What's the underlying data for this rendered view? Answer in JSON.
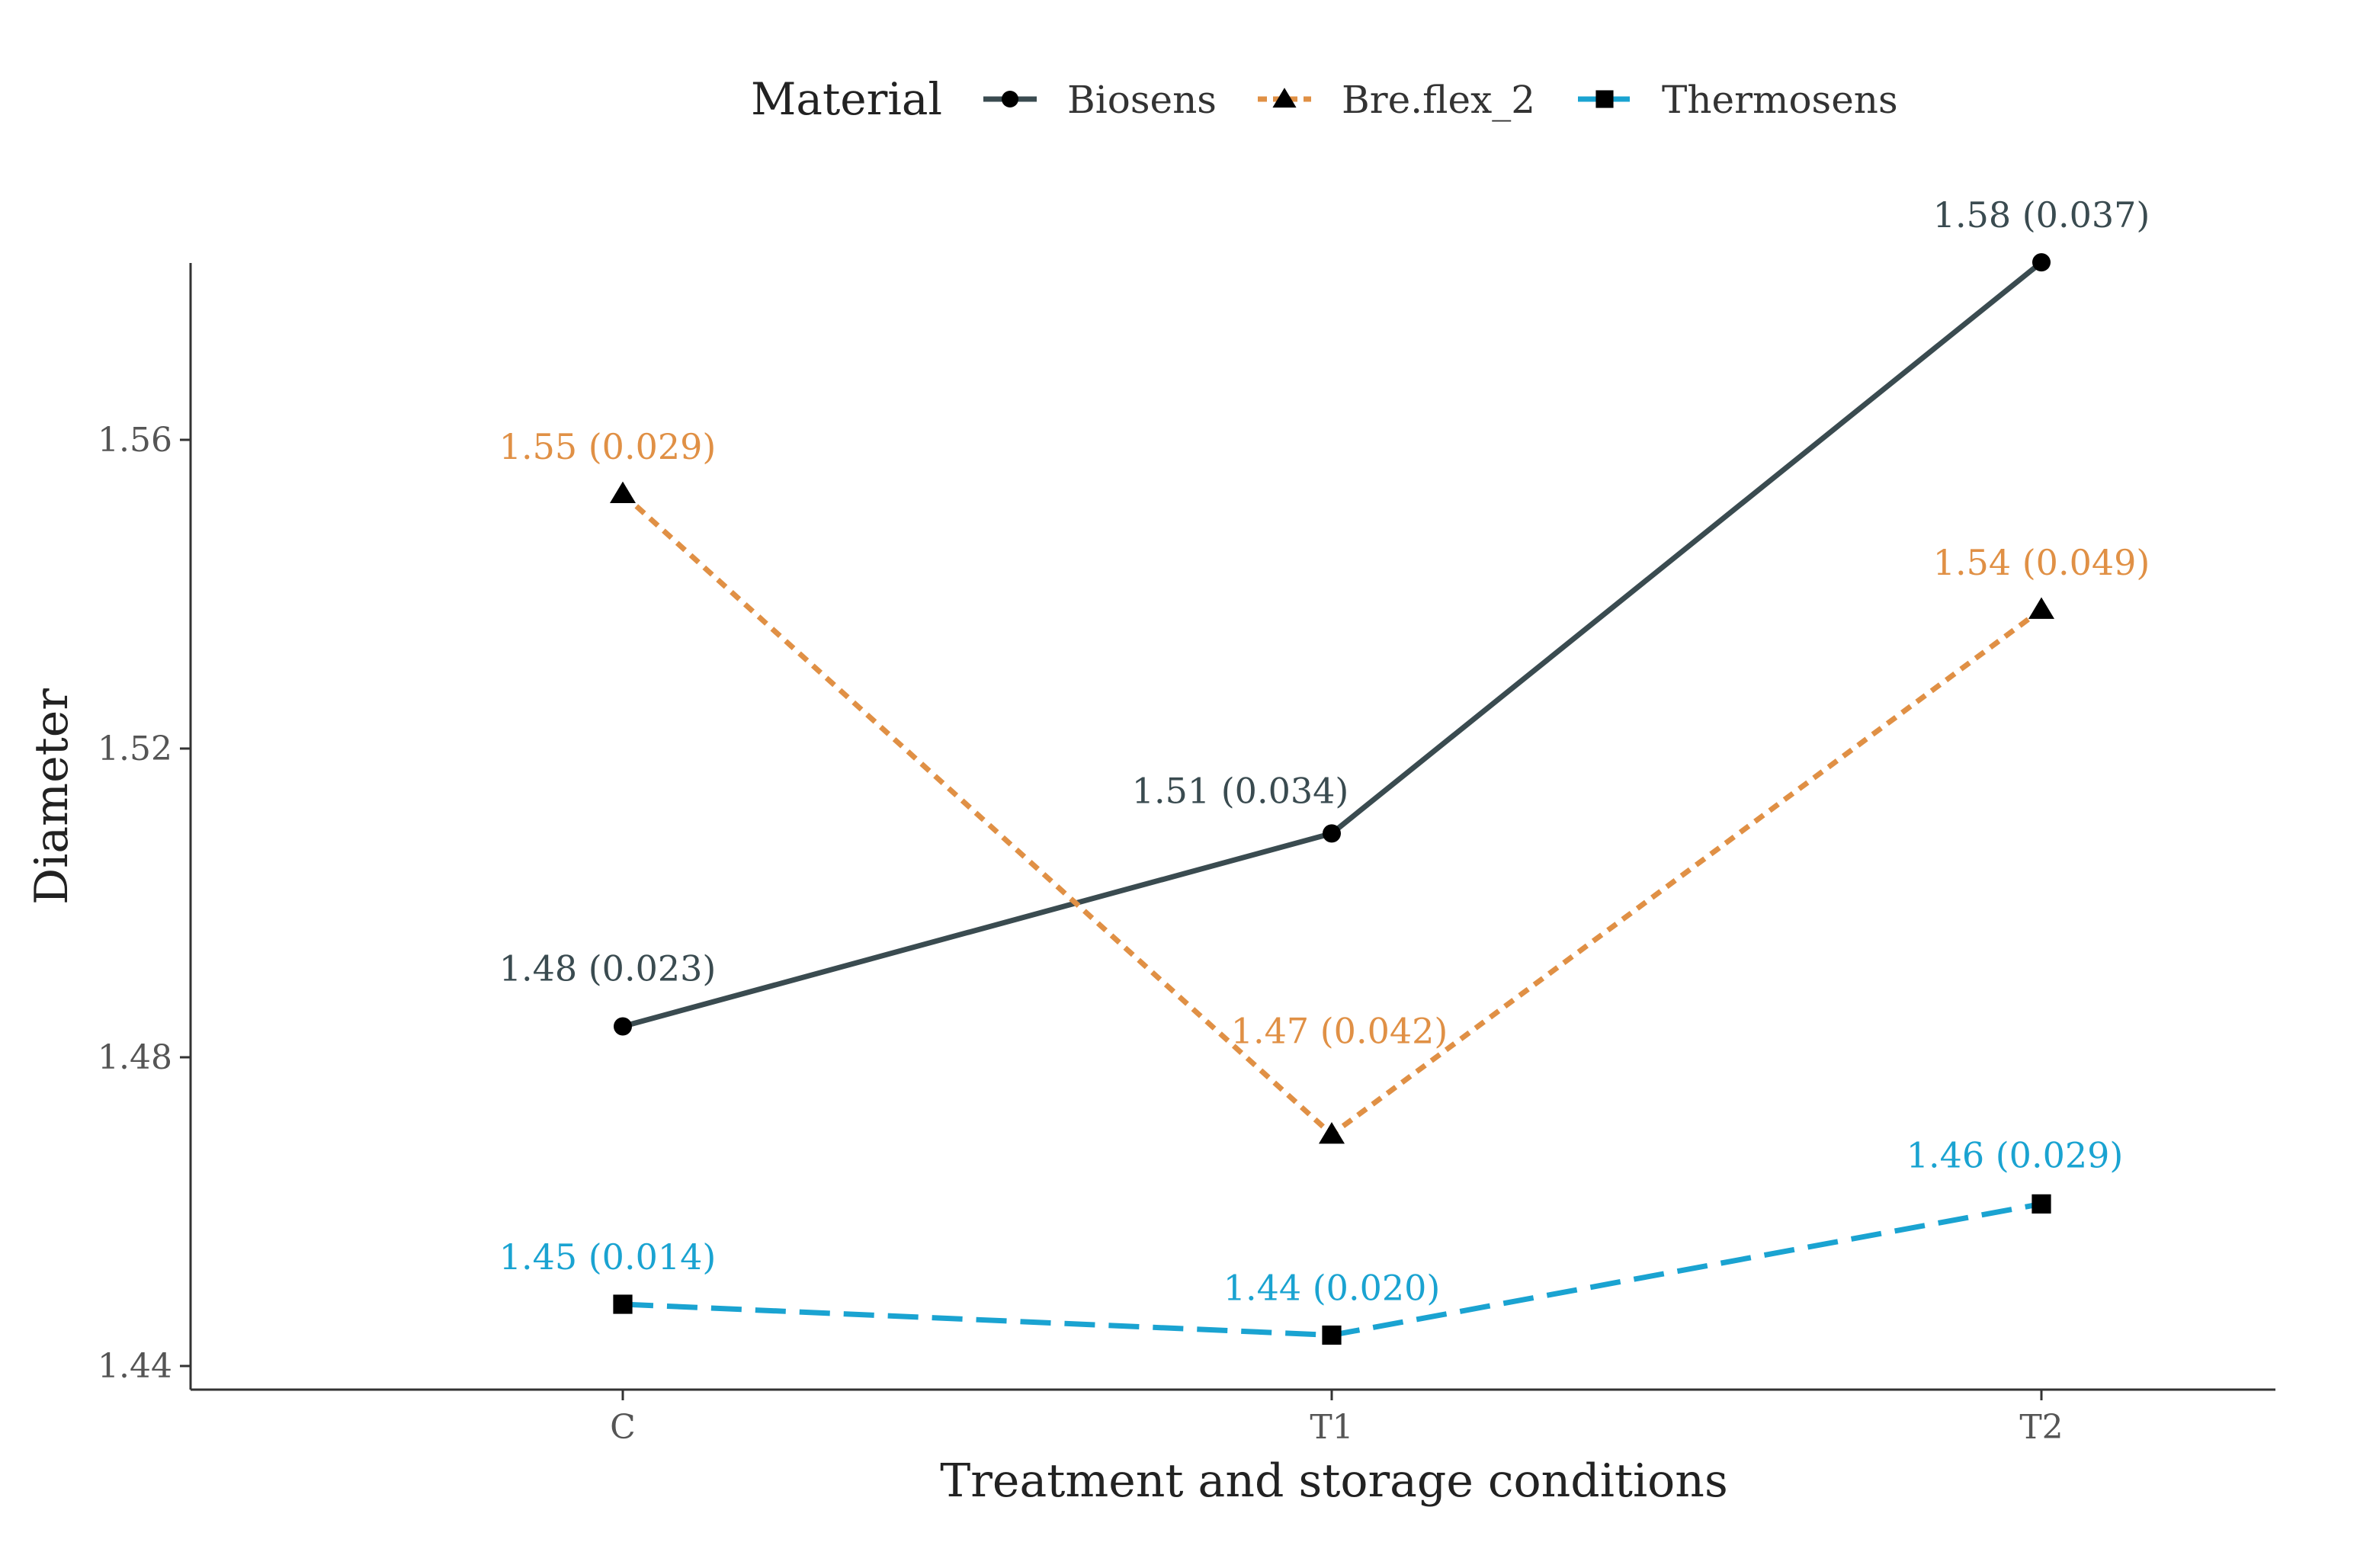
{
  "chart_data": {
    "type": "line",
    "title": "",
    "xlabel": "Treatment and storage conditions",
    "ylabel": "Diameter",
    "categories": [
      "C",
      "T1",
      "T2"
    ],
    "ylim": [
      1.437,
      1.583
    ],
    "yticks": [
      1.44,
      1.48,
      1.52,
      1.56
    ],
    "ytick_labels": [
      "1.44",
      "1.48",
      "1.52",
      "1.56"
    ],
    "grid": false,
    "legend": {
      "title": "Material",
      "placement": "top"
    },
    "series": [
      {
        "name": "Biosens",
        "color": "#3a4b50",
        "linestyle": "solid",
        "marker": "circle",
        "values": [
          1.484,
          1.509,
          1.583
        ],
        "labels": [
          "1.48 (0.023)",
          "1.51 (0.034)",
          "1.58 (0.037)"
        ]
      },
      {
        "name": "Bre.flex_2",
        "color": "#e09045",
        "linestyle": "dotted",
        "marker": "triangle",
        "values": [
          1.553,
          1.47,
          1.538
        ],
        "labels": [
          "1.55 (0.029)",
          "1.47 (0.042)",
          "1.54 (0.049)"
        ]
      },
      {
        "name": "Thermosens",
        "color": "#1aa3d1",
        "linestyle": "dashed",
        "marker": "square",
        "values": [
          1.448,
          1.444,
          1.461
        ],
        "labels": [
          "1.45 (0.014)",
          "1.44 (0.020)",
          "1.46 (0.029)"
        ]
      }
    ]
  }
}
